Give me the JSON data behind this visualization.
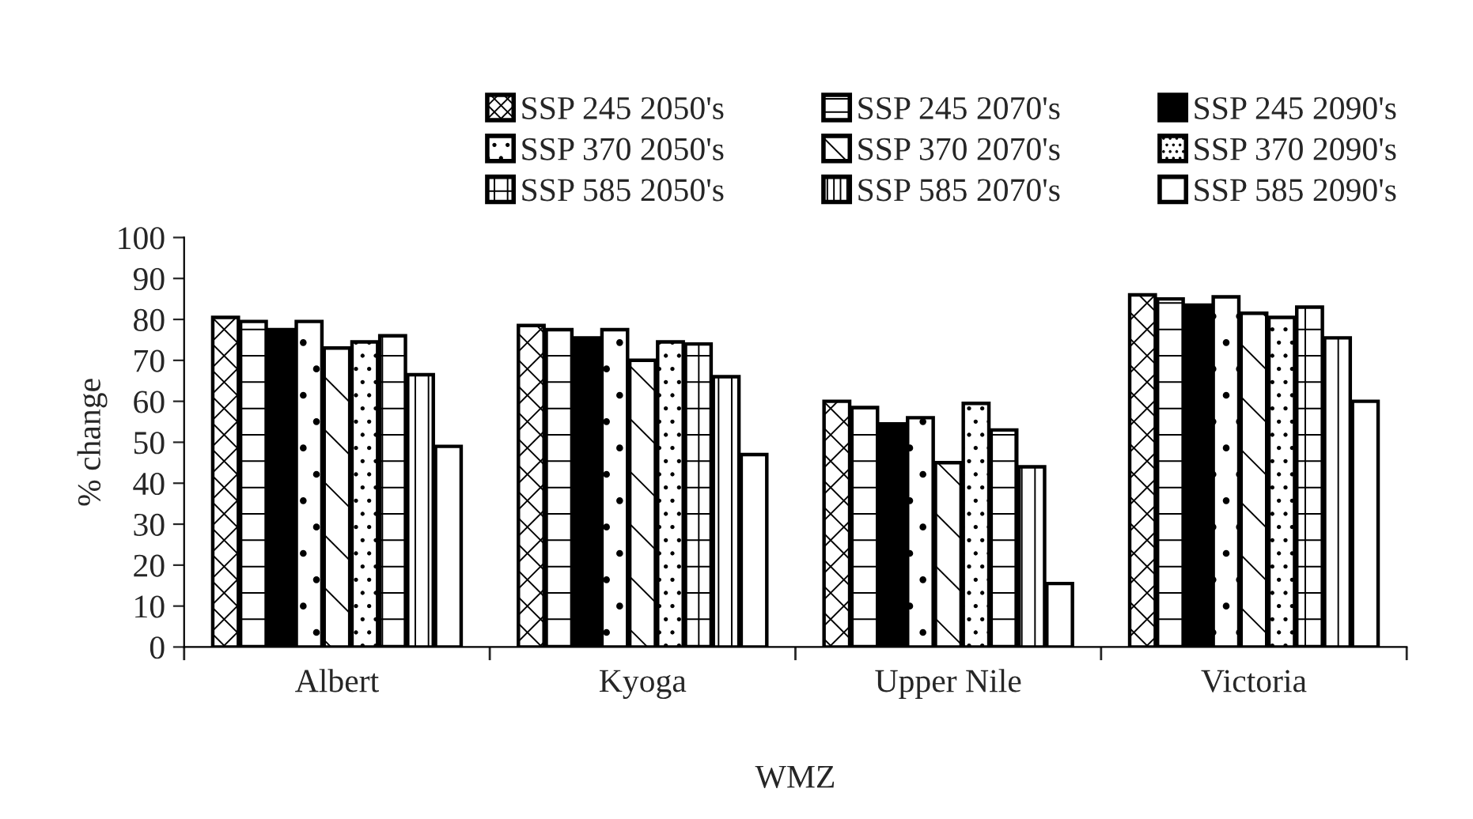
{
  "chart_data": {
    "type": "bar",
    "xlabel": "WMZ",
    "ylabel": "% change",
    "categories": [
      "Albert",
      "Kyoga",
      "Upper Nile",
      "Victoria"
    ],
    "series": [
      {
        "name": "SSP 245 2050's",
        "color": "#ffffff",
        "values": [
          80.5,
          78.5,
          60,
          86
        ]
      },
      {
        "name": "SSP 245 2070's",
        "color": "#ffffff",
        "values": [
          79.5,
          77.5,
          58.5,
          85
        ]
      },
      {
        "name": "SSP 245 2090's",
        "color": "#000000",
        "values": [
          77.5,
          75.5,
          54.5,
          83.5
        ]
      },
      {
        "name": "SSP 370 2050's",
        "color": "#ffffff",
        "values": [
          79.5,
          77.5,
          56,
          85.5
        ]
      },
      {
        "name": "SSP 370 2070's",
        "color": "#ffffff",
        "values": [
          73,
          70,
          45,
          81.5
        ]
      },
      {
        "name": "SSP 370 2090's",
        "color": "#ffffff",
        "values": [
          74.5,
          74.5,
          59.5,
          80.5
        ]
      },
      {
        "name": "SSP 585 2050's",
        "color": "#ffffff",
        "values": [
          76,
          74,
          53,
          83
        ]
      },
      {
        "name": "SSP 585 2070's",
        "color": "#ffffff",
        "values": [
          66.5,
          66,
          44,
          75.5
        ]
      },
      {
        "name": "SSP 585 2090's",
        "color": "#ffffff",
        "values": [
          49,
          47,
          15.5,
          60
        ]
      }
    ],
    "ylim": [
      0,
      100
    ],
    "yticks": [
      0,
      10,
      20,
      30,
      40,
      50,
      60,
      70,
      80,
      90,
      100
    ],
    "grid": false,
    "legend": "top"
  }
}
